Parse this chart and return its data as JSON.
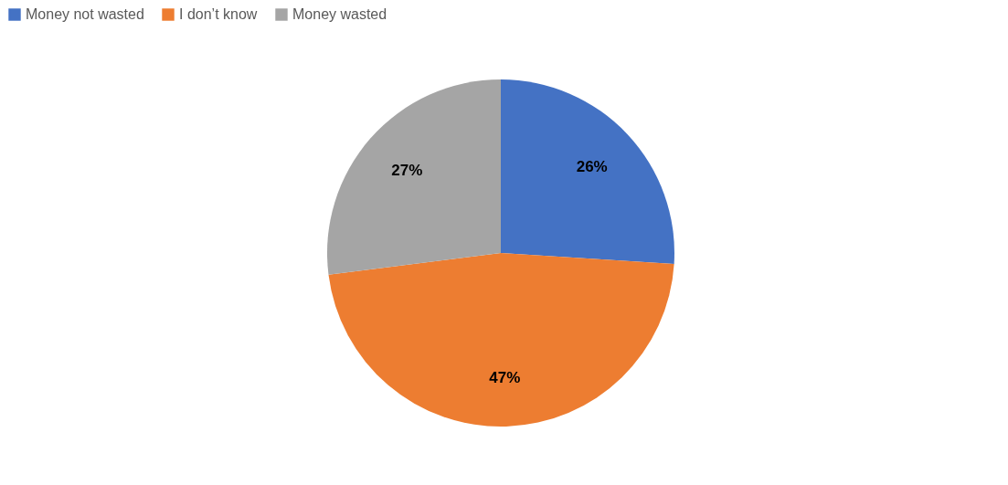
{
  "chart_data": {
    "type": "pie",
    "categories": [
      "Money not wasted",
      "I don’t know",
      "Money wasted"
    ],
    "values": [
      26,
      47,
      27
    ],
    "colors": [
      "#4472c4",
      "#ed7d31",
      "#a5a5a5"
    ],
    "value_labels": [
      "26%",
      "47%",
      "27%"
    ],
    "legend": "top"
  }
}
